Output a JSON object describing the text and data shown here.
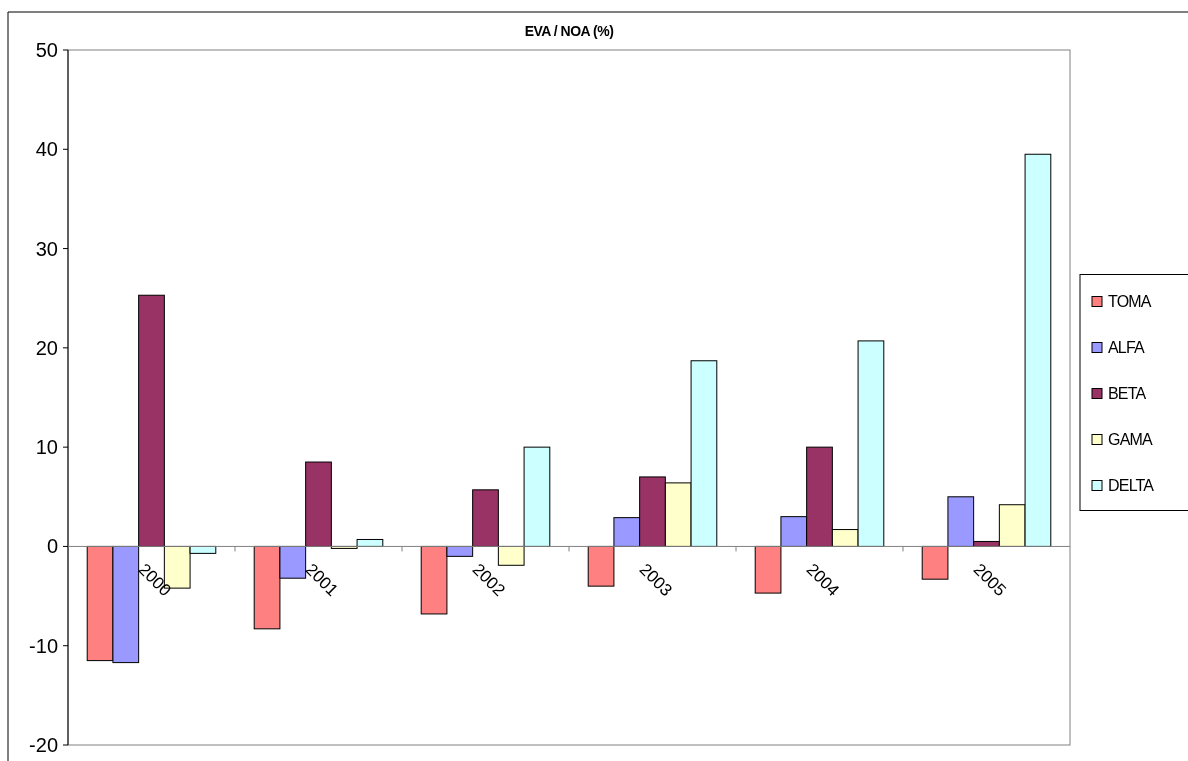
{
  "chart_data": {
    "type": "bar",
    "title": "EVA / NOA (%)",
    "categories": [
      "2000",
      "2001",
      "2002",
      "2003",
      "2004",
      "2005"
    ],
    "series": [
      {
        "name": "TOMA",
        "color": "#ff8080",
        "values": [
          -11.5,
          -8.3,
          -6.8,
          -4.0,
          -4.7,
          -3.3
        ]
      },
      {
        "name": "ALFA",
        "color": "#9999ff",
        "values": [
          -11.7,
          -3.2,
          -1.0,
          2.9,
          3.0,
          5.0
        ]
      },
      {
        "name": "BETA",
        "color": "#993366",
        "values": [
          25.3,
          8.5,
          5.7,
          7.0,
          10.0,
          0.5
        ]
      },
      {
        "name": "GAMA",
        "color": "#ffffcc",
        "values": [
          -4.2,
          -0.2,
          -1.9,
          6.4,
          1.7,
          4.2
        ]
      },
      {
        "name": "DELTA",
        "color": "#ccffff",
        "values": [
          -0.7,
          0.7,
          10.0,
          18.7,
          20.7,
          39.5
        ]
      }
    ],
    "ylim": [
      -20,
      50
    ],
    "yticks": [
      -20,
      -10,
      0,
      10,
      20,
      30,
      40,
      50
    ],
    "grid": false,
    "legend": "right"
  }
}
